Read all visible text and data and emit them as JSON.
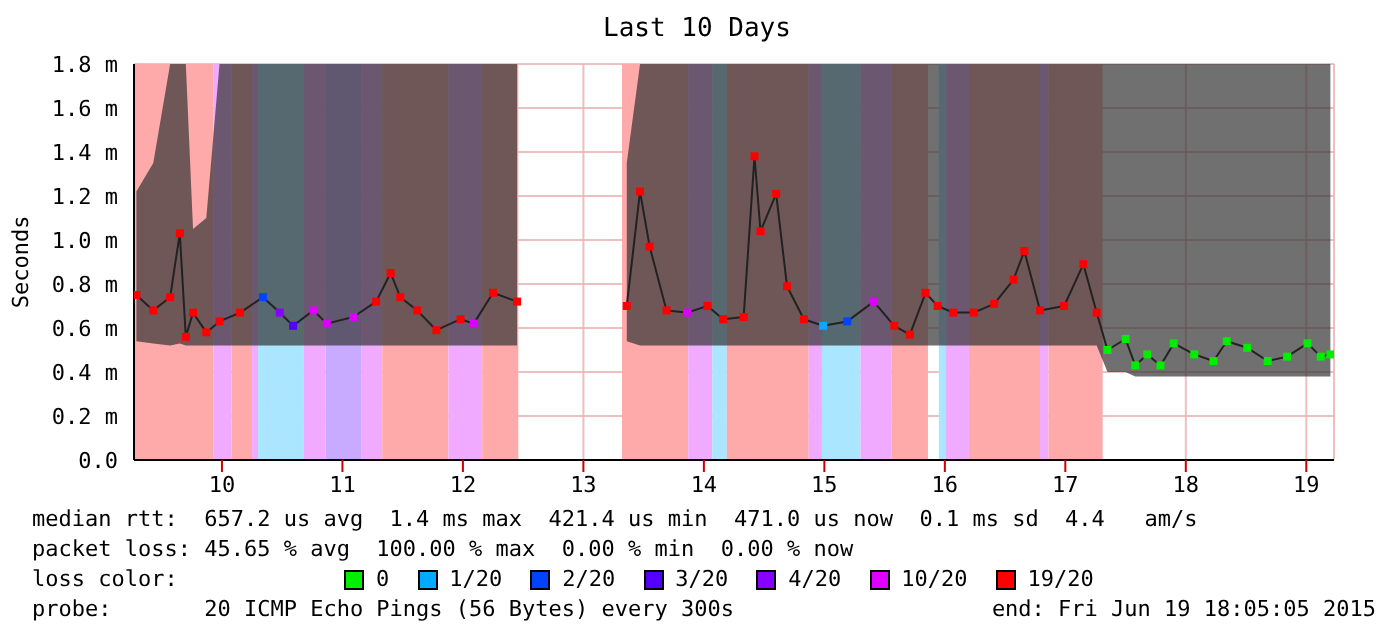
{
  "chart_data": {
    "type": "line",
    "title": "Last 10 Days",
    "ylabel": "Seconds",
    "xlim": [
      9.27,
      19.23
    ],
    "xticks": [
      10,
      11,
      12,
      13,
      14,
      15,
      16,
      17,
      18,
      19
    ],
    "ylim": [
      0,
      1.8
    ],
    "yticks": [
      {
        "value": 0,
        "label": "0.0"
      },
      {
        "value": 0.2,
        "label": "0.2 m"
      },
      {
        "value": 0.4,
        "label": "0.4 m"
      },
      {
        "value": 0.6,
        "label": "0.6 m"
      },
      {
        "value": 0.8,
        "label": "0.8 m"
      },
      {
        "value": 1.0,
        "label": "1.0 m"
      },
      {
        "value": 1.2,
        "label": "1.2 m"
      },
      {
        "value": 1.4,
        "label": "1.4 m"
      },
      {
        "value": 1.6,
        "label": "1.6 m"
      },
      {
        "value": 1.8,
        "label": "1.8 m"
      }
    ],
    "grid": true,
    "legend": "bottom",
    "legend_title": "loss color:",
    "bands": [
      {
        "axis": "x",
        "from": 9.27,
        "to": 9.93,
        "color": "#ffaaaa"
      },
      {
        "axis": "x",
        "from": 9.93,
        "to": 10.08,
        "color": "#f0aaff"
      },
      {
        "axis": "x",
        "from": 10.08,
        "to": 10.25,
        "color": "#ffaaaa"
      },
      {
        "axis": "x",
        "from": 10.25,
        "to": 10.3,
        "color": "#f0aaff"
      },
      {
        "axis": "x",
        "from": 10.3,
        "to": 10.68,
        "color": "#aae6ff"
      },
      {
        "axis": "x",
        "from": 10.68,
        "to": 10.86,
        "color": "#f0aaff"
      },
      {
        "axis": "x",
        "from": 10.86,
        "to": 11.16,
        "color": "#c8aaff"
      },
      {
        "axis": "x",
        "from": 11.16,
        "to": 11.33,
        "color": "#f0aaff"
      },
      {
        "axis": "x",
        "from": 11.33,
        "to": 11.88,
        "color": "#ffaaaa"
      },
      {
        "axis": "x",
        "from": 11.88,
        "to": 12.16,
        "color": "#f0aaff"
      },
      {
        "axis": "x",
        "from": 12.16,
        "to": 12.46,
        "color": "#ffaaaa"
      },
      {
        "axis": "x",
        "from": 13.32,
        "to": 13.87,
        "color": "#ffaaaa"
      },
      {
        "axis": "x",
        "from": 13.87,
        "to": 14.07,
        "color": "#f0aaff"
      },
      {
        "axis": "x",
        "from": 14.07,
        "to": 14.19,
        "color": "#aae6ff"
      },
      {
        "axis": "x",
        "from": 14.19,
        "to": 14.87,
        "color": "#ffaaaa"
      },
      {
        "axis": "x",
        "from": 14.87,
        "to": 14.98,
        "color": "#f0aaff"
      },
      {
        "axis": "x",
        "from": 14.98,
        "to": 15.3,
        "color": "#aae6ff"
      },
      {
        "axis": "x",
        "from": 15.3,
        "to": 15.56,
        "color": "#f0aaff"
      },
      {
        "axis": "x",
        "from": 15.56,
        "to": 15.86,
        "color": "#ffaaaa"
      },
      {
        "axis": "x",
        "from": 15.95,
        "to": 16.01,
        "color": "#aae6ff"
      },
      {
        "axis": "x",
        "from": 16.01,
        "to": 16.2,
        "color": "#f0aaff"
      },
      {
        "axis": "x",
        "from": 16.2,
        "to": 16.79,
        "color": "#ffaaaa"
      },
      {
        "axis": "x",
        "from": 16.79,
        "to": 16.86,
        "color": "#f0aaff"
      },
      {
        "axis": "x",
        "from": 16.86,
        "to": 17.31,
        "color": "#ffaaaa"
      }
    ],
    "series": [
      {
        "color": "#222222",
        "marker": "none",
        "x": [
          9.29,
          9.43,
          9.57,
          9.65,
          9.7,
          9.76,
          9.87,
          9.98,
          10.15,
          10.34,
          10.48,
          10.59,
          10.76,
          10.87,
          11.09,
          11.28,
          11.4,
          11.48,
          11.62,
          11.78,
          11.98,
          12.09,
          12.25,
          12.45,
          12.9,
          13.36,
          13.47,
          13.55,
          13.69,
          13.86,
          14.03,
          14.16,
          14.33,
          14.42,
          14.47,
          14.6,
          14.69,
          14.83,
          14.99,
          15.19,
          15.41,
          15.58,
          15.71,
          15.84,
          15.94,
          16.07,
          16.24,
          16.41,
          16.57,
          16.66,
          16.79,
          16.99,
          17.15,
          17.26,
          17.35,
          17.5,
          17.58,
          17.68,
          17.79,
          17.9,
          18.07,
          18.23,
          18.34,
          18.51,
          18.68,
          18.84,
          19.01,
          19.12,
          19.2
        ],
        "values": [
          0.75,
          0.68,
          0.74,
          1.03,
          0.56,
          0.67,
          0.58,
          0.63,
          0.67,
          0.74,
          0.67,
          0.61,
          0.68,
          0.62,
          0.65,
          0.72,
          0.85,
          0.74,
          0.68,
          0.59,
          0.64,
          0.62,
          0.76,
          0.72,
          null,
          0.7,
          1.22,
          0.97,
          0.68,
          0.67,
          0.7,
          0.64,
          0.65,
          1.38,
          1.04,
          1.21,
          0.79,
          0.64,
          0.61,
          0.63,
          0.72,
          0.61,
          0.57,
          0.76,
          0.7,
          0.67,
          0.67,
          0.71,
          0.82,
          0.95,
          0.68,
          0.7,
          0.89,
          0.67,
          0.5,
          0.55,
          0.43,
          0.48,
          0.43,
          0.53,
          0.48,
          0.45,
          0.54,
          0.51,
          0.45,
          0.47,
          0.53,
          0.47,
          0.48
        ],
        "lower": [
          0.54,
          0.53,
          0.52,
          0.53,
          0.52,
          0.52,
          0.52,
          0.52,
          0.52,
          0.52,
          0.52,
          0.52,
          0.52,
          0.52,
          0.52,
          0.52,
          0.52,
          0.52,
          0.52,
          0.52,
          0.52,
          0.52,
          0.52,
          0.52,
          null,
          0.54,
          0.52,
          0.52,
          0.52,
          0.52,
          0.52,
          0.52,
          0.52,
          0.52,
          0.52,
          0.52,
          0.52,
          0.52,
          0.52,
          0.52,
          0.52,
          0.52,
          0.52,
          0.52,
          0.52,
          0.52,
          0.52,
          0.52,
          0.52,
          0.52,
          0.52,
          0.52,
          0.52,
          0.52,
          0.4,
          0.4,
          0.38,
          0.38,
          0.38,
          0.38,
          0.38,
          0.38,
          0.38,
          0.38,
          0.38,
          0.38,
          0.38,
          0.38,
          0.38
        ],
        "upper": [
          1.22,
          1.35,
          1.8,
          1.8,
          1.8,
          1.05,
          1.1,
          1.8,
          1.8,
          1.8,
          1.8,
          1.8,
          1.8,
          1.8,
          1.8,
          1.8,
          1.8,
          1.8,
          1.8,
          1.8,
          1.8,
          1.8,
          1.8,
          1.8,
          null,
          1.35,
          1.8,
          1.8,
          1.8,
          1.8,
          1.8,
          1.8,
          1.8,
          1.8,
          1.8,
          1.8,
          1.8,
          1.8,
          1.8,
          1.8,
          1.8,
          1.8,
          1.8,
          1.8,
          1.8,
          1.8,
          1.8,
          1.8,
          1.8,
          1.8,
          1.8,
          1.8,
          1.8,
          1.8,
          1.8,
          1.8,
          1.8,
          1.8,
          1.8,
          1.8,
          1.8,
          1.8,
          1.8,
          1.8,
          1.8,
          1.8,
          1.8,
          1.8,
          1.8
        ]
      },
      {
        "type": "scatter",
        "marker": "square",
        "name": "0",
        "color": "#00ee00",
        "x": [
          17.35,
          17.5,
          17.58,
          17.68,
          17.79,
          17.9,
          18.07,
          18.23,
          18.34,
          18.51,
          18.68,
          18.84,
          19.01,
          19.12,
          19.2
        ],
        "values": [
          0.5,
          0.55,
          0.43,
          0.48,
          0.43,
          0.53,
          0.48,
          0.45,
          0.54,
          0.51,
          0.45,
          0.47,
          0.53,
          0.47,
          0.48
        ]
      },
      {
        "type": "scatter",
        "marker": "square",
        "name": "1/20",
        "color": "#00aaff",
        "x": [
          14.99
        ],
        "values": [
          0.61
        ]
      },
      {
        "type": "scatter",
        "marker": "square",
        "name": "2/20",
        "color": "#0044ff",
        "x": [
          10.34,
          15.19
        ],
        "values": [
          0.74,
          0.63
        ]
      },
      {
        "type": "scatter",
        "marker": "square",
        "name": "3/20",
        "color": "#5500ff",
        "x": [
          10.59
        ],
        "values": [
          0.61
        ]
      },
      {
        "type": "scatter",
        "marker": "square",
        "name": "4/20",
        "color": "#8800ff",
        "x": [
          10.48
        ],
        "values": [
          0.67
        ]
      },
      {
        "type": "scatter",
        "marker": "square",
        "name": "10/20",
        "color": "#dd00ff",
        "x": [
          10.76,
          10.87,
          11.09,
          12.09,
          13.86,
          15.41
        ],
        "values": [
          0.68,
          0.62,
          0.65,
          0.62,
          0.67,
          0.72
        ]
      },
      {
        "type": "scatter",
        "marker": "square",
        "name": "19/20",
        "color": "#ff0000",
        "x": [
          9.29,
          9.43,
          9.57,
          9.65,
          9.7,
          9.76,
          9.87,
          9.98,
          10.15,
          11.28,
          11.4,
          11.48,
          11.62,
          11.78,
          11.98,
          12.25,
          12.45,
          13.36,
          13.47,
          13.55,
          13.69,
          14.03,
          14.16,
          14.33,
          14.42,
          14.47,
          14.6,
          14.69,
          14.83,
          15.58,
          15.71,
          15.84,
          15.94,
          16.07,
          16.24,
          16.41,
          16.57,
          16.66,
          16.79,
          16.99,
          17.15,
          17.26
        ],
        "values": [
          0.75,
          0.68,
          0.74,
          1.03,
          0.56,
          0.67,
          0.58,
          0.63,
          0.67,
          0.72,
          0.85,
          0.74,
          0.68,
          0.59,
          0.64,
          0.76,
          0.72,
          0.7,
          1.22,
          0.97,
          0.68,
          0.7,
          0.64,
          0.65,
          1.38,
          1.04,
          1.21,
          0.79,
          0.64,
          0.61,
          0.57,
          0.76,
          0.7,
          0.67,
          0.67,
          0.71,
          0.82,
          0.95,
          0.68,
          0.7,
          0.89,
          0.67
        ]
      }
    ],
    "annotations": [
      "median rtt:  657.2 us avg  1.4 ms max  421.4 us min  471.0 us now  0.1 ms sd  4.4   am/s",
      "packet loss: 45.65 % avg  100.00 % max  0.00 % min  0.00 % now",
      "probe:       20 ICMP Echo Pings (56 Bytes) every 300s",
      "end: Fri Jun 19 18:05:05 2015"
    ]
  }
}
